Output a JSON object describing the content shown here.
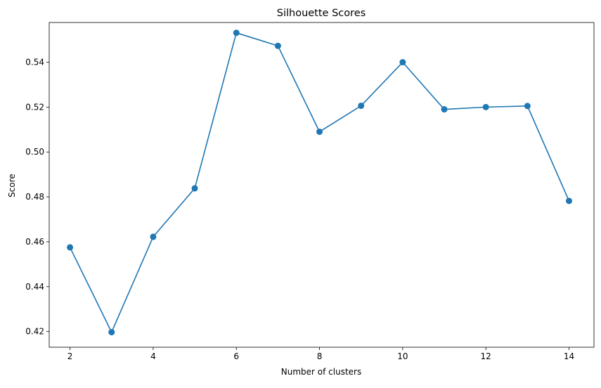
{
  "chart_data": {
    "type": "line",
    "title": "Silhouette Scores",
    "xlabel": "Number of clusters",
    "ylabel": "Score",
    "x": [
      2,
      3,
      4,
      5,
      6,
      7,
      8,
      9,
      10,
      11,
      12,
      13,
      14
    ],
    "series": [
      {
        "values": [
          0.4575,
          0.4197,
          0.4622,
          0.4838,
          0.5531,
          0.5473,
          0.509,
          0.5206,
          0.54,
          0.519,
          0.52,
          0.5205,
          0.4782
        ],
        "color": "#1f77b4",
        "marker": "circle"
      }
    ],
    "xlim": [
      1.5,
      14.6
    ],
    "ylim": [
      0.413,
      0.5577
    ],
    "xticks": [
      2,
      4,
      6,
      8,
      10,
      12,
      14
    ],
    "yticks": [
      0.42,
      0.44,
      0.46,
      0.48,
      0.5,
      0.52,
      0.54
    ],
    "ytick_labels": [
      "0.42",
      "0.44",
      "0.46",
      "0.48",
      "0.50",
      "0.52",
      "0.54"
    ],
    "grid": false,
    "legend": "none"
  }
}
